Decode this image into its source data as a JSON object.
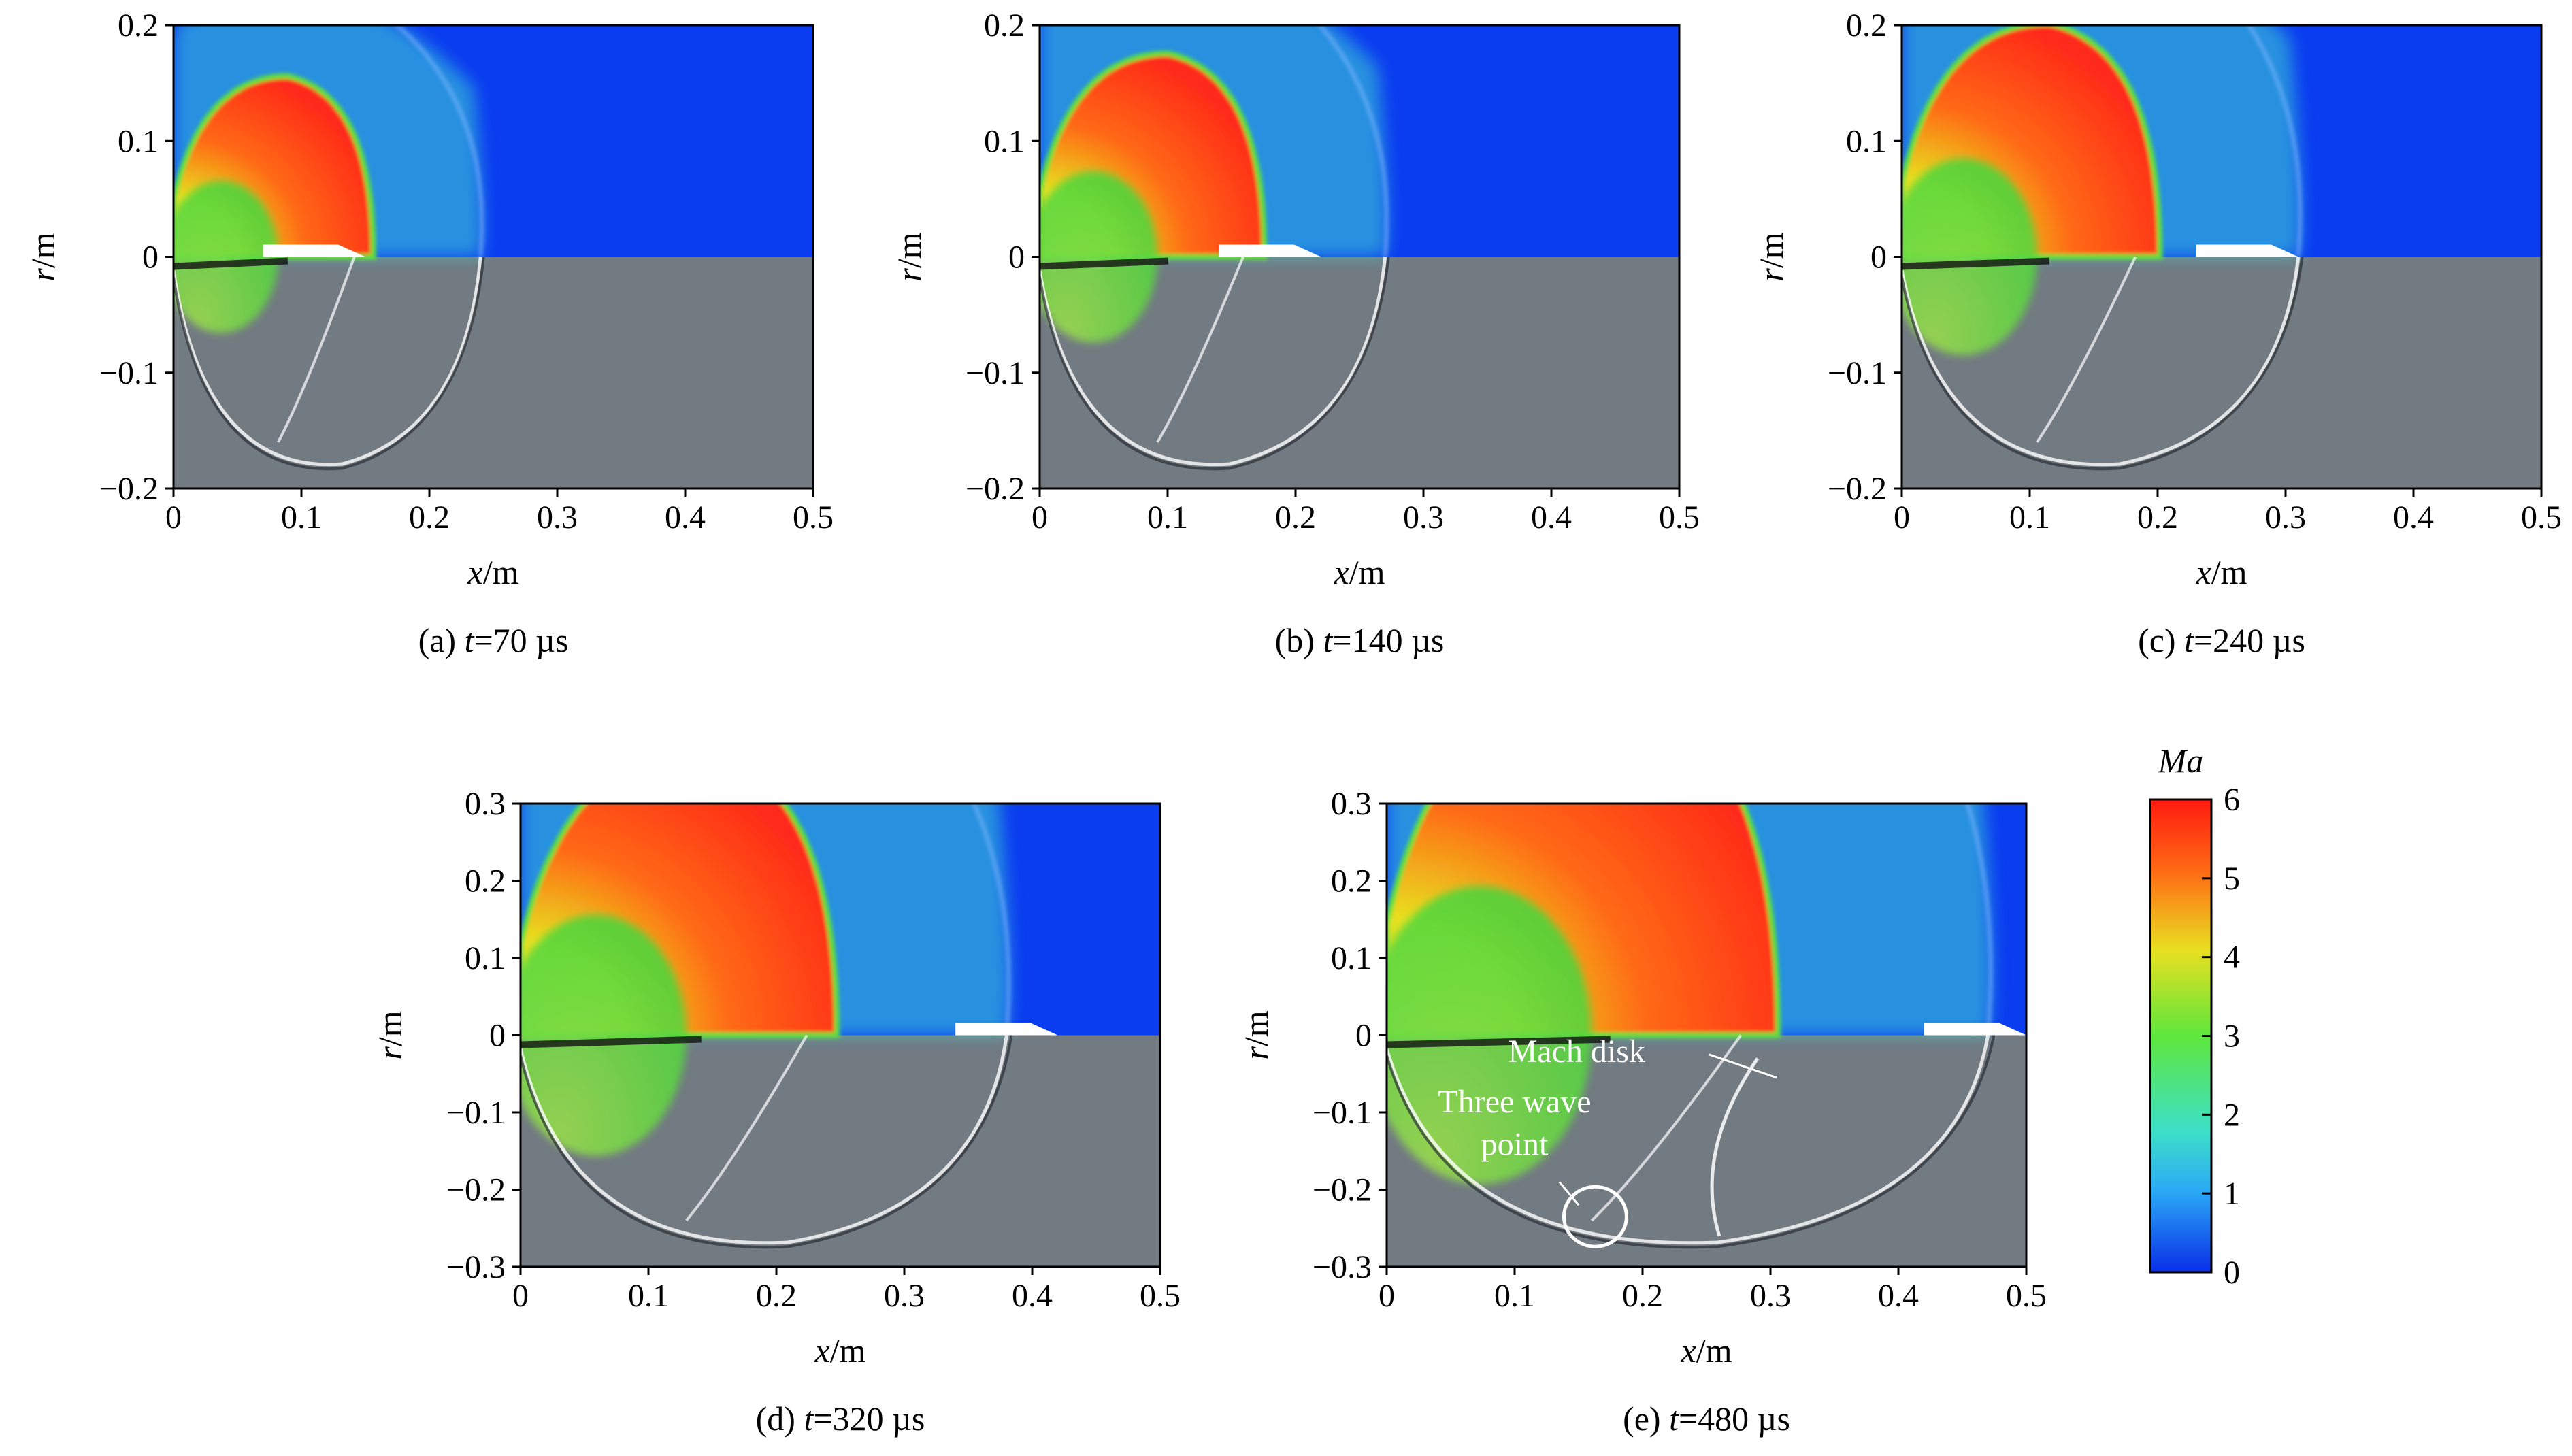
{
  "figure": {
    "colors": {
      "upper_background": "#0a3cf0",
      "lower_background": "#727a82",
      "hot_core": "#ff2a1a",
      "mid": "#5ee03c",
      "cool": "#3fd8d2",
      "colorbar_stops": [
        "#0a2ee8",
        "#2aa8f5",
        "#3de0c8",
        "#5ee63c",
        "#e8e020",
        "#ff6a14",
        "#ff1a10"
      ]
    },
    "colorbar": {
      "title": "Ma",
      "min": 0,
      "max": 6,
      "ticks": [
        "0",
        "1",
        "2",
        "3",
        "4",
        "5",
        "6"
      ]
    },
    "annotations": {
      "mach_disk": "Mach disk",
      "three_wave_line1": "Three wave",
      "three_wave_line2": "point"
    },
    "panels": [
      {
        "id": "a",
        "caption_prefix": "(a) ",
        "caption_var": "t",
        "caption_value": "=70 µs",
        "xlabel_var": "x",
        "xlabel_unit": "/m",
        "ylabel_var": "r",
        "ylabel_unit": "/m",
        "xlim": [
          0,
          0.5
        ],
        "ylim": [
          -0.2,
          0.2
        ],
        "xticks": [
          "0",
          "0.1",
          "0.2",
          "0.3",
          "0.4",
          "0.5"
        ],
        "yticks": [
          "0.2",
          "0.1",
          "0",
          "−0.1",
          "−0.2"
        ],
        "shock_front_x": 0.24,
        "projectile_nose_x": 0.15
      },
      {
        "id": "b",
        "caption_prefix": "(b) ",
        "caption_var": "t",
        "caption_value": "=140 µs",
        "xlabel_var": "x",
        "xlabel_unit": "/m",
        "ylabel_var": "r",
        "ylabel_unit": "/m",
        "xlim": [
          0,
          0.5
        ],
        "ylim": [
          -0.2,
          0.2
        ],
        "xticks": [
          "0",
          "0.1",
          "0.2",
          "0.3",
          "0.4",
          "0.5"
        ],
        "yticks": [
          "0.2",
          "0.1",
          "0",
          "−0.1",
          "−0.2"
        ],
        "shock_front_x": 0.27,
        "projectile_nose_x": 0.22
      },
      {
        "id": "c",
        "caption_prefix": "(c) ",
        "caption_var": "t",
        "caption_value": "=240 µs",
        "xlabel_var": "x",
        "xlabel_unit": "/m",
        "ylabel_var": "r",
        "ylabel_unit": "/m",
        "xlim": [
          0,
          0.5
        ],
        "ylim": [
          -0.2,
          0.2
        ],
        "xticks": [
          "0",
          "0.1",
          "0.2",
          "0.3",
          "0.4",
          "0.5"
        ],
        "yticks": [
          "0.2",
          "0.1",
          "0",
          "−0.1",
          "−0.2"
        ],
        "shock_front_x": 0.31,
        "projectile_nose_x": 0.31
      },
      {
        "id": "d",
        "caption_prefix": "(d) ",
        "caption_var": "t",
        "caption_value": "=320 µs",
        "xlabel_var": "x",
        "xlabel_unit": "/m",
        "ylabel_var": "r",
        "ylabel_unit": "/m",
        "xlim": [
          0,
          0.5
        ],
        "ylim": [
          -0.3,
          0.3
        ],
        "xticks": [
          "0",
          "0.1",
          "0.2",
          "0.3",
          "0.4",
          "0.5"
        ],
        "yticks": [
          "0.3",
          "0.2",
          "0.1",
          "0",
          "−0.1",
          "−0.2",
          "−0.3"
        ],
        "shock_front_x": 0.38,
        "projectile_nose_x": 0.42
      },
      {
        "id": "e",
        "caption_prefix": "(e) ",
        "caption_var": "t",
        "caption_value": "=480 µs",
        "xlabel_var": "x",
        "xlabel_unit": "/m",
        "ylabel_var": "r",
        "ylabel_unit": "/m",
        "xlim": [
          0,
          0.5
        ],
        "ylim": [
          -0.3,
          0.3
        ],
        "xticks": [
          "0",
          "0.1",
          "0.2",
          "0.3",
          "0.4",
          "0.5"
        ],
        "yticks": [
          "0.3",
          "0.2",
          "0.1",
          "0",
          "−0.1",
          "−0.2",
          "−0.3"
        ],
        "shock_front_x": 0.47,
        "projectile_nose_x": 0.5
      }
    ]
  }
}
